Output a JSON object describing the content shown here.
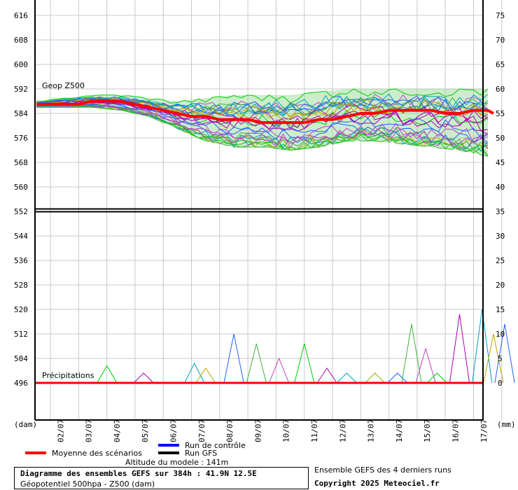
{
  "chart_data": {
    "type": "line",
    "left_axis": {
      "unit_label": "(dam)",
      "ticks": [
        616,
        608,
        600,
        592,
        584,
        576,
        568,
        560,
        552,
        544,
        536,
        528,
        520,
        512,
        504,
        496
      ],
      "range": [
        488,
        620
      ]
    },
    "right_axis_upper": {
      "ticks": [
        75,
        70,
        65,
        60,
        55,
        50,
        45,
        40,
        35
      ]
    },
    "right_axis_lower": {
      "unit_label": "(mm)",
      "ticks": [
        30,
        25,
        20,
        15,
        10,
        5,
        0
      ]
    },
    "x_ticks": [
      "02/07",
      "03/07",
      "04/07",
      "05/07",
      "06/07",
      "07/07",
      "08/07",
      "09/07",
      "10/07",
      "11/07",
      "12/07",
      "13/07",
      "14/07",
      "15/07",
      "16/07",
      "17/07"
    ],
    "upper_panel_label": "Geop Z500",
    "lower_panel_label": "Précipitations",
    "mean_z500": [
      [
        0,
        587
      ],
      [
        0.5,
        587
      ],
      [
        1,
        587
      ],
      [
        1.5,
        587
      ],
      [
        2,
        588
      ],
      [
        2.5,
        588
      ],
      [
        3,
        588
      ],
      [
        3.5,
        587
      ],
      [
        4,
        586
      ],
      [
        4.5,
        585
      ],
      [
        5,
        584
      ],
      [
        5.5,
        583
      ],
      [
        6,
        583
      ],
      [
        6.5,
        582
      ],
      [
        7,
        582
      ],
      [
        7.5,
        582
      ],
      [
        8,
        581
      ],
      [
        8.5,
        581
      ],
      [
        9,
        581
      ],
      [
        9.5,
        581
      ],
      [
        10,
        582
      ],
      [
        10.5,
        582
      ],
      [
        11,
        583
      ],
      [
        11.5,
        584
      ],
      [
        12,
        584
      ],
      [
        12.5,
        585
      ],
      [
        13,
        585
      ],
      [
        13.5,
        585
      ],
      [
        14,
        585
      ],
      [
        14.5,
        584
      ],
      [
        15,
        584
      ],
      [
        15.5,
        585
      ],
      [
        16,
        585
      ],
      [
        16.2,
        584
      ]
    ],
    "spread_z500": [
      [
        0,
        586,
        588
      ],
      [
        1,
        586,
        589
      ],
      [
        2,
        586,
        590
      ],
      [
        3,
        585,
        590
      ],
      [
        4,
        583,
        589
      ],
      [
        5,
        579,
        588
      ],
      [
        6,
        575,
        589
      ],
      [
        7,
        573,
        590
      ],
      [
        8,
        573,
        590
      ],
      [
        9,
        572,
        590
      ],
      [
        10,
        573,
        591
      ],
      [
        11,
        575,
        592
      ],
      [
        12,
        575,
        592
      ],
      [
        13,
        574,
        592
      ],
      [
        14,
        573,
        592
      ],
      [
        15,
        572,
        592
      ],
      [
        16,
        570,
        592
      ]
    ],
    "precip_peaks_mm": [
      [
        2.5,
        3.5
      ],
      [
        3.8,
        2
      ],
      [
        5.6,
        4
      ],
      [
        6,
        3
      ],
      [
        7.0,
        10
      ],
      [
        7.8,
        8
      ],
      [
        8.6,
        5
      ],
      [
        9.5,
        8
      ],
      [
        10.3,
        3
      ],
      [
        11.0,
        2
      ],
      [
        12.0,
        2
      ],
      [
        12.8,
        2
      ],
      [
        13.3,
        12
      ],
      [
        13.8,
        7
      ],
      [
        14.2,
        2
      ],
      [
        15.0,
        14
      ],
      [
        15.8,
        15
      ],
      [
        16.2,
        10
      ],
      [
        16.6,
        12
      ]
    ],
    "legend": {
      "control": "Run de contrôle",
      "gfs": "Run GFS",
      "mean": "Moyenne des scénarios"
    },
    "colors": {
      "control": "#0000ff",
      "gfs": "#000000",
      "mean": "#ff0000",
      "members": [
        "#00cc00",
        "#b000b0",
        "#00a0c0",
        "#c0a000",
        "#2060ff",
        "#40b040",
        "#c040c0"
      ]
    }
  },
  "footer": {
    "altitude": "Altitude du modele : 141m",
    "title": "Diagramme des ensembles GEFS sur 384h : 41.9N 12.5E",
    "subtitle": "Géopotentiel 500hpa - Z500 (dam)",
    "runs": "Ensemble GEFS des 4 derniers runs",
    "copyright": "Copyright 2025 Meteociel.fr"
  }
}
